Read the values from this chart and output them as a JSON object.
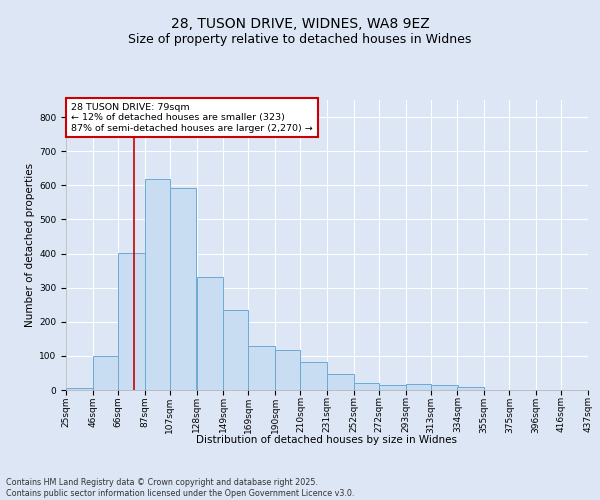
{
  "title_line1": "28, TUSON DRIVE, WIDNES, WA8 9EZ",
  "title_line2": "Size of property relative to detached houses in Widnes",
  "xlabel": "Distribution of detached houses by size in Widnes",
  "ylabel": "Number of detached properties",
  "annotation_line1": "28 TUSON DRIVE: 79sqm",
  "annotation_line2": "← 12% of detached houses are smaller (323)",
  "annotation_line3": "87% of semi-detached houses are larger (2,270) →",
  "footer_line1": "Contains HM Land Registry data © Crown copyright and database right 2025.",
  "footer_line2": "Contains public sector information licensed under the Open Government Licence v3.0.",
  "bar_edges": [
    25,
    46,
    66,
    87,
    107,
    128,
    149,
    169,
    190,
    210,
    231,
    252,
    272,
    293,
    313,
    334,
    355,
    375,
    396,
    416,
    437
  ],
  "bar_heights": [
    5,
    101,
    403,
    619,
    592,
    332,
    234,
    128,
    118,
    81,
    47,
    21,
    16,
    17,
    16,
    9,
    1,
    1,
    0,
    1
  ],
  "bar_color": "#c9ddf2",
  "bar_edge_color": "#6aaad4",
  "vline_x": 79,
  "vline_color": "#cc0000",
  "annotation_box_color": "#cc0000",
  "background_color": "#dce6f5",
  "plot_background": "#dce6f5",
  "ylim": [
    0,
    850
  ],
  "yticks": [
    0,
    100,
    200,
    300,
    400,
    500,
    600,
    700,
    800
  ],
  "grid_color": "#ffffff",
  "title_fontsize": 10,
  "subtitle_fontsize": 9,
  "annotation_fontsize": 6.8,
  "tick_fontsize": 6.5,
  "label_fontsize": 7.5,
  "footer_fontsize": 5.8
}
